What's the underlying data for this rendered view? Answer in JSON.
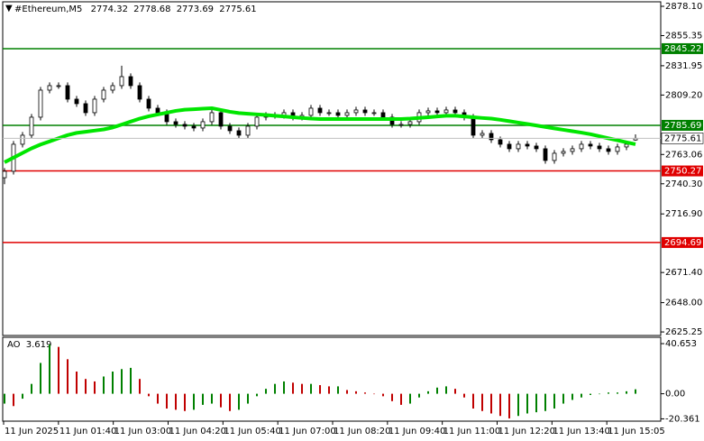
{
  "chart_data": {
    "type": "candlestick",
    "title": "#Ethereum,M5",
    "last_bar": [
      2774.32,
      2778.68,
      2773.69,
      2775.61
    ],
    "ylim": [
      2621.8,
      2883.0
    ],
    "yticks": [
      {
        "value": 2878.1,
        "label": "2878.10"
      },
      2855.35,
      2831.95,
      {
        "value": 2809.2,
        "label": "2809.20"
      },
      2763.06,
      {
        "value": 2740.3,
        "label": "2740.30"
      },
      {
        "value": 2716.9,
        "label": "2716.90"
      },
      {
        "value": 2671.4,
        "label": "2671.40"
      },
      {
        "value": 2648,
        "label": "2648.00"
      },
      2625.25
    ],
    "x_labels": [
      "11 Jun 2025",
      "11 Jun 01:40",
      "11 Jun 03:00",
      "11 Jun 04:20",
      "11 Jun 05:40",
      "11 Jun 07:00",
      "11 Jun 08:20",
      "11 Jun 09:40",
      "11 Jun 11:00",
      "11 Jun 12:20",
      "11 Jun 13:40",
      "11 Jun 15:05"
    ],
    "up_color": "#ffffff",
    "down_color": "#000000",
    "outline_color": "#000000",
    "open": [
      2745.0,
      2750.0,
      2771.0,
      2778.0,
      2792.0,
      2813.0,
      2816.5,
      2816.5,
      2806.0,
      2802.5,
      2795.5,
      2806.0,
      2813.0,
      2816.5,
      2823.5,
      2816.5,
      2806.0,
      2799.0,
      2795.5,
      2788.5,
      2786.4,
      2785.0,
      2783.6,
      2788.5,
      2795.5,
      2785.0,
      2781.5,
      2778.0,
      2785.0,
      2792.0,
      2793.4,
      2793.4,
      2795.5,
      2792.0,
      2793.4,
      2799.0,
      2795.5,
      2795.5,
      2793.4,
      2795.5,
      2797.6,
      2795.5,
      2795.5,
      2792.0,
      2786.4,
      2786.4,
      2788.5,
      2795.5,
      2796.9,
      2795.5,
      2797.6,
      2795.5,
      2792.0,
      2778.0,
      2779.4,
      2774.5,
      2771.0,
      2767.5,
      2771.0,
      2769.6,
      2767.5,
      2758.4,
      2764.0,
      2765.4,
      2767.5,
      2771.0,
      2769.6,
      2767.5,
      2765.4,
      2768.9,
      2774.32
    ],
    "high": [
      2752.5,
      2773.5,
      2780.5,
      2794.5,
      2815.5,
      2819.0,
      2819.0,
      2819.0,
      2808.5,
      2805.0,
      2808.5,
      2815.5,
      2819.0,
      2832.0,
      2826.0,
      2819.0,
      2808.5,
      2801.5,
      2798.0,
      2791.0,
      2788.9,
      2787.5,
      2791.0,
      2798.0,
      2798.0,
      2787.5,
      2784.0,
      2787.5,
      2794.5,
      2795.9,
      2795.9,
      2798.0,
      2798.0,
      2795.9,
      2801.5,
      2801.5,
      2798.0,
      2798.0,
      2798.0,
      2800.1,
      2800.1,
      2798.0,
      2798.0,
      2794.5,
      2788.9,
      2791.0,
      2798.0,
      2799.4,
      2799.4,
      2800.1,
      2800.1,
      2798.0,
      2794.5,
      2781.9,
      2781.9,
      2777.0,
      2773.5,
      2773.5,
      2773.5,
      2772.1,
      2770.0,
      2766.5,
      2767.9,
      2770.0,
      2773.5,
      2773.5,
      2772.1,
      2770.0,
      2771.4,
      2773.5,
      2778.68
    ],
    "low": [
      2740.0,
      2747.5,
      2768.5,
      2775.5,
      2789.5,
      2810.5,
      2814.0,
      2803.5,
      2800.0,
      2793.0,
      2793.0,
      2803.5,
      2810.5,
      2814.0,
      2814.0,
      2803.5,
      2796.5,
      2793.0,
      2786.0,
      2783.9,
      2782.5,
      2781.1,
      2781.1,
      2786.0,
      2782.5,
      2779.0,
      2775.5,
      2775.5,
      2782.5,
      2789.5,
      2790.9,
      2790.9,
      2789.5,
      2789.5,
      2790.9,
      2793.0,
      2793.0,
      2790.9,
      2790.9,
      2793.0,
      2793.0,
      2793.0,
      2789.5,
      2783.9,
      2783.9,
      2783.9,
      2786.0,
      2793.0,
      2793.0,
      2793.0,
      2793.0,
      2789.5,
      2775.5,
      2775.5,
      2772.0,
      2768.5,
      2765.0,
      2765.0,
      2767.1,
      2765.0,
      2755.9,
      2755.9,
      2761.5,
      2762.9,
      2765.0,
      2767.1,
      2765.0,
      2762.9,
      2762.9,
      2766.4,
      2773.69
    ],
    "close": [
      2750.0,
      2771.0,
      2778.0,
      2792.0,
      2813.0,
      2816.5,
      2816.5,
      2806.0,
      2802.5,
      2795.5,
      2806.0,
      2813.0,
      2816.5,
      2823.5,
      2816.5,
      2806.0,
      2799.0,
      2795.5,
      2788.5,
      2786.4,
      2785.0,
      2783.6,
      2788.5,
      2795.5,
      2785.0,
      2781.5,
      2778.0,
      2785.0,
      2792.0,
      2793.4,
      2793.4,
      2795.5,
      2792.0,
      2793.4,
      2799.0,
      2795.5,
      2795.5,
      2793.4,
      2795.5,
      2797.6,
      2795.5,
      2795.5,
      2792.0,
      2786.4,
      2786.4,
      2788.5,
      2795.5,
      2796.9,
      2795.5,
      2797.6,
      2795.5,
      2792.0,
      2778.0,
      2779.4,
      2774.5,
      2771.0,
      2767.5,
      2771.0,
      2769.6,
      2767.5,
      2758.4,
      2764.0,
      2765.4,
      2767.5,
      2771.0,
      2769.6,
      2767.5,
      2765.4,
      2768.9,
      2771.0,
      2775.61
    ],
    "ma": {
      "color": "#00e600",
      "values": [
        2757.0,
        2760.6,
        2764.2,
        2767.8,
        2770.8,
        2773.2,
        2775.7,
        2778.1,
        2779.8,
        2780.7,
        2781.6,
        2782.5,
        2784.0,
        2786.3,
        2788.6,
        2790.9,
        2792.7,
        2794.1,
        2795.5,
        2796.9,
        2797.8,
        2798.2,
        2798.6,
        2799.0,
        2797.6,
        2796.2,
        2795.2,
        2794.7,
        2794.2,
        2793.7,
        2793.1,
        2792.6,
        2792.0,
        2791.4,
        2790.9,
        2790.6,
        2790.6,
        2790.6,
        2790.6,
        2790.6,
        2790.6,
        2790.6,
        2790.6,
        2790.6,
        2790.6,
        2790.9,
        2791.4,
        2792.0,
        2792.6,
        2793.1,
        2793.1,
        2792.6,
        2792.0,
        2791.4,
        2790.9,
        2790.0,
        2788.9,
        2787.8,
        2786.7,
        2785.6,
        2784.4,
        2783.3,
        2782.2,
        2781.1,
        2780.0,
        2778.8,
        2777.2,
        2775.6,
        2774.1,
        2772.5,
        2771.0
      ]
    },
    "levels": [
      {
        "value": 2845.22,
        "color": "#008000"
      },
      {
        "value": 2785.69,
        "color": "#008000"
      },
      {
        "value": 2750.27,
        "color": "#e00000"
      },
      {
        "value": 2694.69,
        "color": "#e00000"
      }
    ],
    "current_price": {
      "value": 2775.61,
      "color": "#c0c0c0"
    },
    "ao": {
      "label": "AO",
      "current": 3.619,
      "up_color": "#008000",
      "down_color": "#c00000",
      "ylim": [
        -21.5,
        45.8
      ],
      "yticks": [
        40.653,
        {
          "value": 0,
          "label": "0.00"
        },
        -20.361
      ],
      "values": [
        -8,
        -10,
        -4,
        8,
        25,
        40,
        38,
        28,
        18,
        12,
        10,
        14,
        18,
        20,
        21,
        12,
        -2,
        -8,
        -12,
        -13,
        -14,
        -13,
        -9,
        -8,
        -11,
        -14,
        -13,
        -8,
        -2,
        4,
        8,
        10,
        9,
        8,
        8,
        7,
        6,
        6,
        3,
        2,
        1,
        0,
        -2,
        -6,
        -9,
        -8,
        -3,
        2,
        5,
        6,
        4,
        -3,
        -12,
        -14,
        -16,
        -18,
        -20,
        -18,
        -16,
        -15,
        -14,
        -12,
        -8,
        -5,
        -3,
        -1,
        0,
        1,
        1,
        2,
        3.619
      ]
    }
  }
}
